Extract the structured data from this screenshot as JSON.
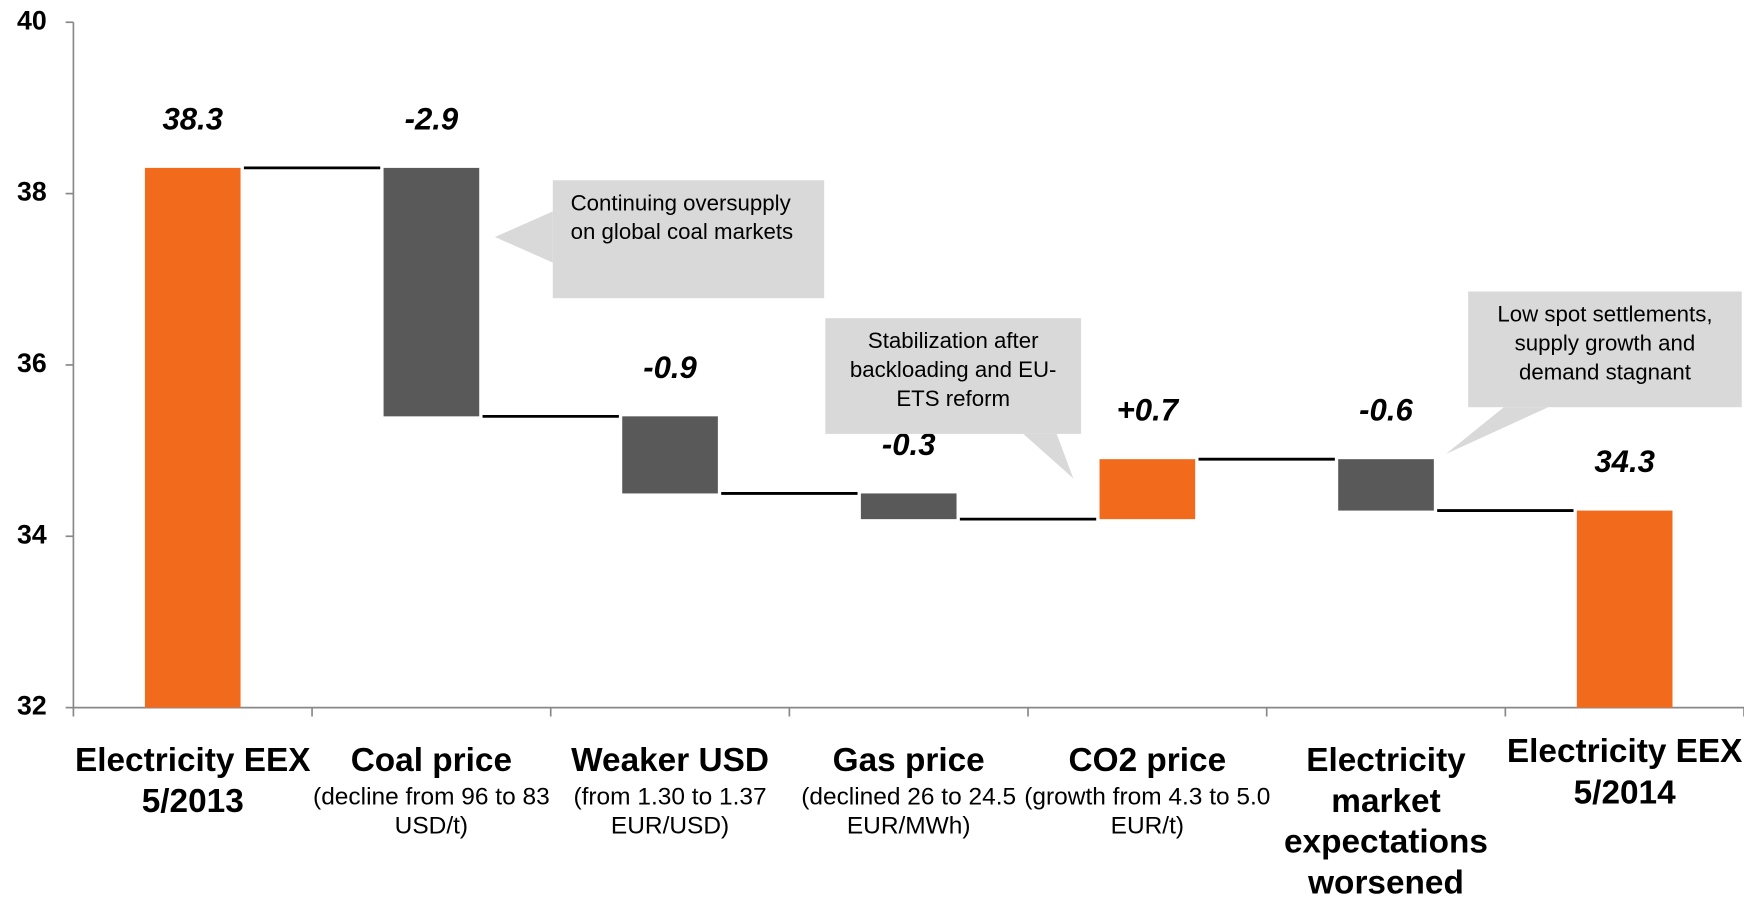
{
  "chart_data": {
    "type": "waterfall",
    "categories": [
      "Electricity EEX 5/2013",
      "Coal price",
      "Weaker USD",
      "Gas price",
      "CO2 price",
      "Electricity market expectations worsened",
      "Electricity EEX 5/2014"
    ],
    "category_notes": [
      null,
      "(decline from 96 to 83 USD/t)",
      "(from 1.30 to 1.37 EUR/USD)",
      "(declined 26 to 24.5 EUR/MWh)",
      "(growth from 4.3 to 5.0 EUR/t)",
      null,
      null
    ],
    "values": [
      38.3,
      -2.9,
      -0.9,
      -0.3,
      0.7,
      -0.6,
      34.3
    ],
    "value_labels": [
      "38.3",
      "-2.9",
      "-0.9",
      "-0.3",
      "+0.7",
      "-0.6",
      "34.3"
    ],
    "measures": [
      "absolute",
      "relative",
      "relative",
      "relative",
      "relative",
      "relative",
      "absolute"
    ],
    "colors": [
      "#f26b1d",
      "#595959",
      "#595959",
      "#595959",
      "#f26b1d",
      "#595959",
      "#f26b1d"
    ],
    "ylim": [
      32,
      40
    ],
    "yticks": [
      32,
      34,
      36,
      38,
      40
    ],
    "annotations": [
      {
        "text": "Continuing oversupply on global coal markets"
      },
      {
        "text": "Stabilization after backloading and EU-ETS reform"
      },
      {
        "text": "Low spot settlements, supply growth and demand stagnant"
      }
    ]
  }
}
